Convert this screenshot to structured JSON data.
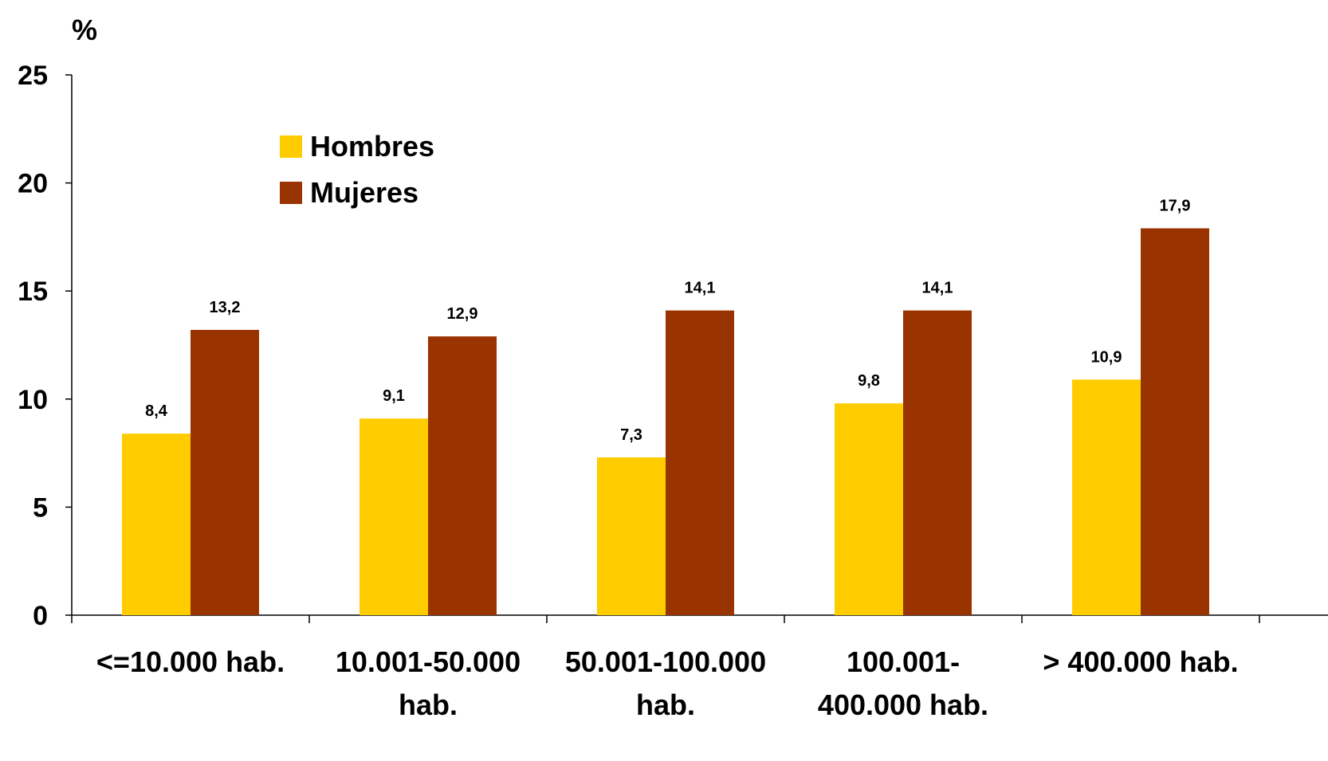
{
  "chart_data": {
    "type": "bar",
    "title": "",
    "ylabel": "%",
    "xlabel": "",
    "ylim": [
      0,
      25
    ],
    "yticks": [
      "0",
      "5",
      "10",
      "15",
      "20",
      "25"
    ],
    "categories": [
      [
        "<=10.000 hab."
      ],
      [
        "10.001-50.000",
        "hab."
      ],
      [
        "50.001-100.000",
        "hab."
      ],
      [
        "100.001-",
        "400.000 hab."
      ],
      [
        "> 400.000 hab."
      ]
    ],
    "series": [
      {
        "name": "Hombres",
        "color": "#FFCC00",
        "values": [
          8.4,
          9.1,
          7.3,
          9.8,
          10.9
        ],
        "labels": [
          "8,4",
          "9,1",
          "7,3",
          "9,8",
          "10,9"
        ]
      },
      {
        "name": "Mujeres",
        "color": "#993300",
        "values": [
          13.2,
          12.9,
          14.1,
          14.1,
          17.9
        ],
        "labels": [
          "13,2",
          "12,9",
          "14,1",
          "14,1",
          "17,9"
        ]
      }
    ],
    "legend_position": "upper-left",
    "grid": false
  }
}
